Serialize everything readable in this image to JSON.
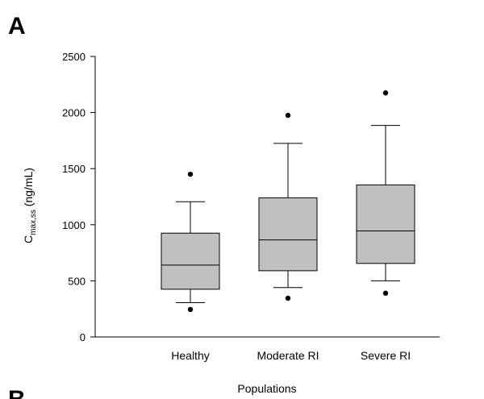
{
  "panel_label": "A",
  "next_panel_label": "B",
  "chart_data": {
    "type": "box",
    "title": "",
    "xlabel": "Populations",
    "ylabel_main": "C",
    "ylabel_sub": "max,ss",
    "ylabel_unit": " (ng/mL)",
    "ylim": [
      0,
      2500
    ],
    "yticks": [
      0,
      500,
      1000,
      1500,
      2000,
      2500
    ],
    "categories": [
      "Healthy",
      "Moderate RI",
      "Severe RI"
    ],
    "boxes": [
      {
        "category": "Healthy",
        "whisker_low": 305,
        "q1": 425,
        "median": 640,
        "q3": 925,
        "whisker_high": 1205,
        "outliers": [
          245,
          1450
        ]
      },
      {
        "category": "Moderate RI",
        "whisker_low": 440,
        "q1": 590,
        "median": 865,
        "q3": 1240,
        "whisker_high": 1725,
        "outliers": [
          345,
          1975
        ]
      },
      {
        "category": "Severe RI",
        "whisker_low": 500,
        "q1": 655,
        "median": 945,
        "q3": 1355,
        "whisker_high": 1885,
        "outliers": [
          390,
          2175
        ]
      }
    ],
    "grid": false,
    "legend": "none"
  }
}
